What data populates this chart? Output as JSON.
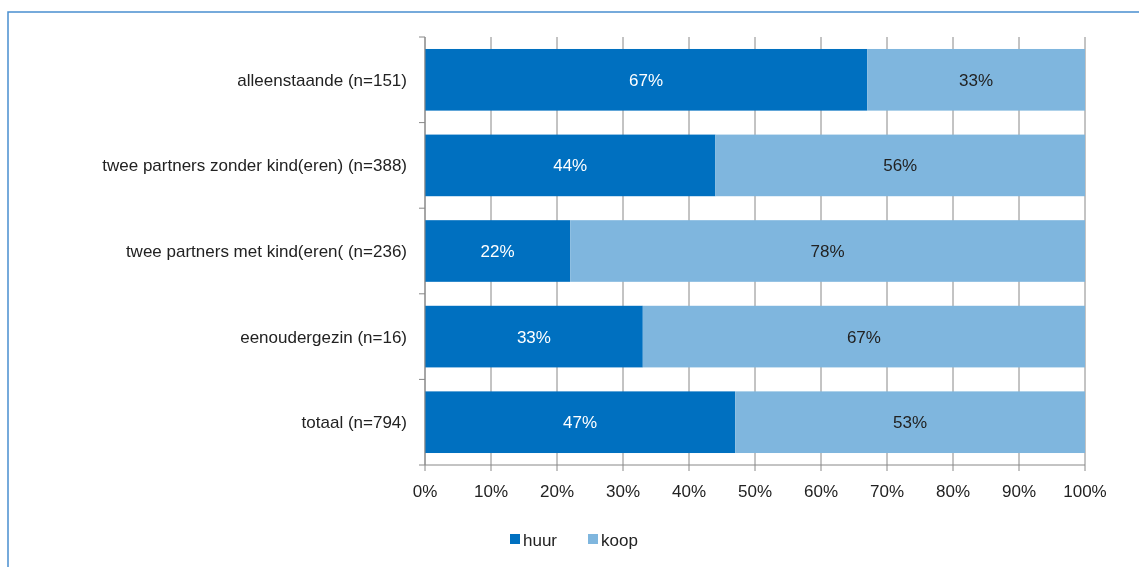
{
  "chart_data": {
    "type": "bar",
    "orientation": "horizontal",
    "stacked": true,
    "categories": [
      "alleenstaande (n=151)",
      "twee partners zonder kind(eren) (n=388)",
      "twee partners met kind(eren( (n=236)",
      "eenoudergezin (n=16)",
      "totaal (n=794)"
    ],
    "series": [
      {
        "name": "huur",
        "color": "#0070c0",
        "values": [
          67,
          44,
          22,
          33,
          47
        ],
        "value_labels": [
          "67%",
          "44%",
          "22%",
          "33%",
          "47%"
        ]
      },
      {
        "name": "koop",
        "color": "#7fb6de",
        "values": [
          33,
          56,
          78,
          67,
          53
        ],
        "value_labels": [
          "33%",
          "56%",
          "78%",
          "67%",
          "53%"
        ]
      }
    ],
    "xlim": [
      0,
      100
    ],
    "xticks": [
      {
        "value": 0,
        "label": "0%"
      },
      {
        "value": 10,
        "label": "10%"
      },
      {
        "value": 20,
        "label": "20%"
      },
      {
        "value": 30,
        "label": "30%"
      },
      {
        "value": 40,
        "label": "40%"
      },
      {
        "value": 50,
        "label": "50%"
      },
      {
        "value": 60,
        "label": "60%"
      },
      {
        "value": 70,
        "label": "70%"
      },
      {
        "value": 80,
        "label": "80%"
      },
      {
        "value": 90,
        "label": "90%"
      },
      {
        "value": 100,
        "label": "100%"
      }
    ],
    "grid": "x",
    "legend": "bottom"
  }
}
